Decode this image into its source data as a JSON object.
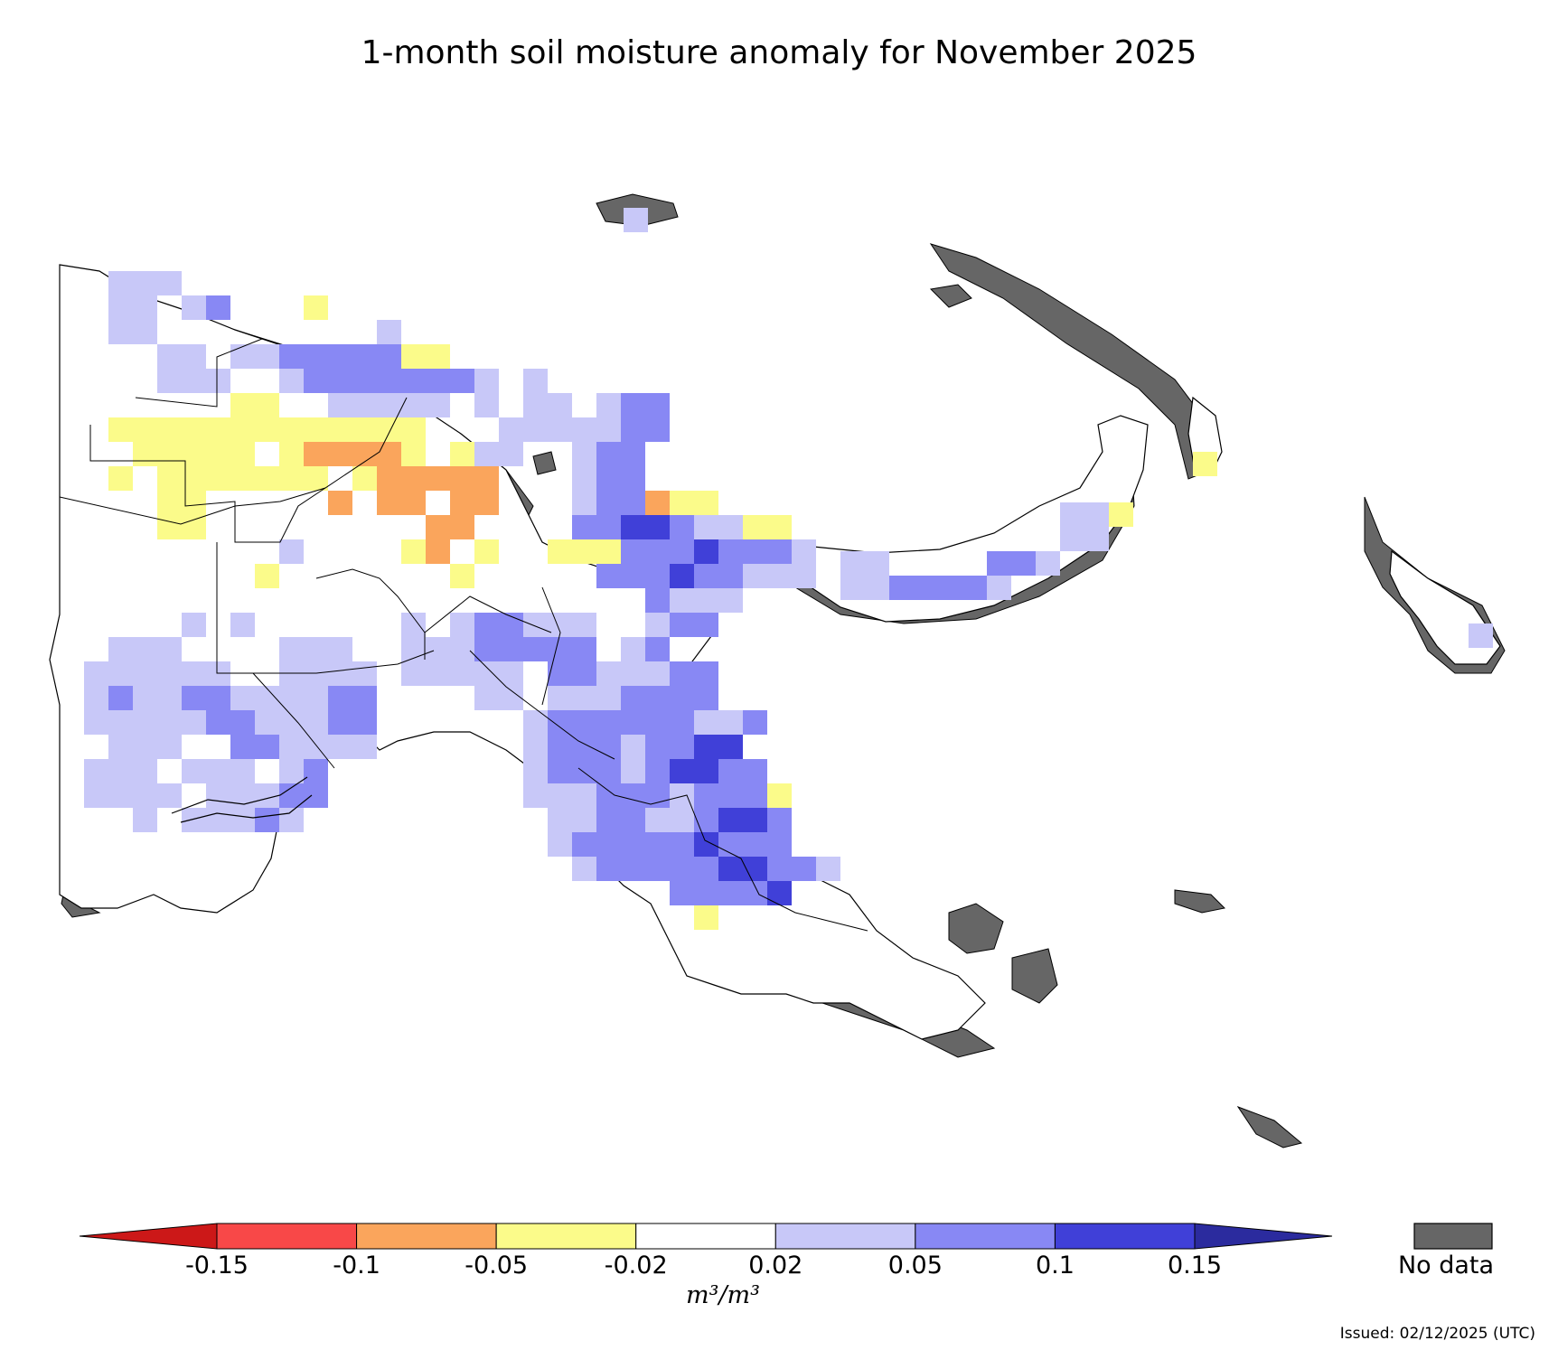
{
  "title": "1-month soil moisture anomaly for November 2025",
  "colorbar": {
    "ticks": [
      "-0.15",
      "-0.1",
      "-0.05",
      "-0.02",
      "0.02",
      "0.05",
      "0.1",
      "0.15"
    ],
    "colors": [
      "#cc1818",
      "#f84848",
      "#faa55c",
      "#fbfb8a",
      "#ffffff",
      "#c8c8f8",
      "#8888f4",
      "#4040d8",
      "#2b2b9e"
    ],
    "units": "m³/m³",
    "nodata_label": "No data",
    "nodata_color": "#666666"
  },
  "issued": "Issued: 02/12/2025 (UTC)",
  "legend_classes": {
    "dry_strong": "#faa55c",
    "dry_weak": "#fbfb8a",
    "wet_weak": "#c8c8f8",
    "wet_mid": "#8888f4",
    "wet_strong": "#4040d8"
  }
}
